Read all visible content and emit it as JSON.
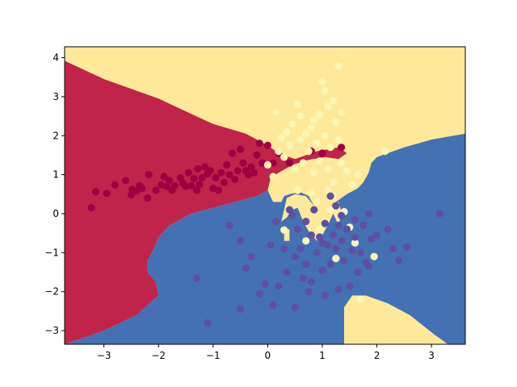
{
  "chart_data": {
    "type": "scatter",
    "title": "",
    "xlabel": "",
    "ylabel": "",
    "xlim": [
      -3.72,
      3.62
    ],
    "ylim": [
      -3.35,
      4.28
    ],
    "grid": false,
    "legend": "none",
    "x_ticks": [
      -3,
      -2,
      -1,
      0,
      1,
      2,
      3
    ],
    "y_ticks": [
      -3,
      -2,
      -1,
      0,
      1,
      2,
      3,
      4
    ],
    "x_tick_labels": [
      "−3",
      "−2",
      "−1",
      "0",
      "1",
      "2",
      "3"
    ],
    "y_tick_labels": [
      "−3",
      "−2",
      "−1",
      "0",
      "1",
      "2",
      "3",
      "4"
    ],
    "background": "decision regions of a 3-class classifier",
    "classes": [
      {
        "class": 0,
        "region_color": "#c1244a",
        "point_color": "#9e0142"
      },
      {
        "class": 1,
        "region_color": "#fee99a",
        "point_color": "#fef6b4"
      },
      {
        "class": 2,
        "region_color": "#4471b4",
        "point_color": "#5e4fa2"
      }
    ],
    "regions": {
      "class0": [
        [
          -3.72,
          3.92
        ],
        [
          -3.0,
          3.45
        ],
        [
          -2.0,
          2.95
        ],
        [
          -1.0,
          2.3
        ],
        [
          -0.4,
          2.05
        ],
        [
          0.0,
          1.75
        ],
        [
          0.2,
          1.55
        ],
        [
          0.5,
          1.4
        ],
        [
          0.9,
          1.6
        ],
        [
          1.3,
          1.7
        ],
        [
          1.45,
          1.55
        ],
        [
          1.3,
          1.4
        ],
        [
          1.05,
          1.45
        ],
        [
          0.75,
          1.38
        ],
        [
          0.45,
          1.25
        ],
        [
          0.2,
          1.05
        ],
        [
          0.05,
          0.9
        ],
        [
          0.0,
          0.6
        ],
        [
          -0.2,
          0.45
        ],
        [
          -0.6,
          0.3
        ],
        [
          -1.0,
          0.15
        ],
        [
          -1.4,
          0.0
        ],
        [
          -1.8,
          -0.3
        ],
        [
          -2.0,
          -0.6
        ],
        [
          -2.1,
          -0.95
        ],
        [
          -2.2,
          -1.2
        ],
        [
          -2.2,
          -1.5
        ],
        [
          -2.05,
          -1.75
        ],
        [
          -2.0,
          -2.1
        ],
        [
          -2.4,
          -2.6
        ],
        [
          -3.0,
          -3.0
        ],
        [
          -3.72,
          -3.35
        ]
      ],
      "class2": [
        [
          -3.72,
          -3.35
        ],
        [
          -3.0,
          -3.0
        ],
        [
          -2.4,
          -2.6
        ],
        [
          -2.0,
          -2.1
        ],
        [
          -2.05,
          -1.75
        ],
        [
          -2.2,
          -1.5
        ],
        [
          -2.2,
          -1.2
        ],
        [
          -2.1,
          -0.95
        ],
        [
          -2.0,
          -0.6
        ],
        [
          -1.8,
          -0.3
        ],
        [
          -1.4,
          0.0
        ],
        [
          -1.0,
          0.15
        ],
        [
          -0.6,
          0.3
        ],
        [
          -0.2,
          0.45
        ],
        [
          0.0,
          0.6
        ],
        [
          0.1,
          0.3
        ],
        [
          0.25,
          0.3
        ],
        [
          0.3,
          0.45
        ],
        [
          0.4,
          0.5
        ],
        [
          0.6,
          0.55
        ],
        [
          0.75,
          0.45
        ],
        [
          0.85,
          0.2
        ],
        [
          0.95,
          0.15
        ],
        [
          1.05,
          0.1
        ],
        [
          1.2,
          0.25
        ],
        [
          1.3,
          0.35
        ],
        [
          1.45,
          0.5
        ],
        [
          1.65,
          0.65
        ],
        [
          1.75,
          0.8
        ],
        [
          1.85,
          1.05
        ],
        [
          1.9,
          1.3
        ],
        [
          2.0,
          1.45
        ],
        [
          2.5,
          1.7
        ],
        [
          3.0,
          1.9
        ],
        [
          3.62,
          2.05
        ],
        [
          3.62,
          -3.35
        ],
        [
          3.3,
          -3.35
        ],
        [
          3.05,
          -3.1
        ],
        [
          2.6,
          -2.6
        ],
        [
          2.0,
          -2.3
        ],
        [
          1.65,
          -2.1
        ],
        [
          1.4,
          -2.4
        ],
        [
          1.4,
          -3.35
        ]
      ],
      "class1_islands": [
        [
          [
            1.4,
            -3.35
          ],
          [
            1.4,
            -2.4
          ],
          [
            1.55,
            -2.1
          ],
          [
            1.8,
            -2.1
          ],
          [
            2.2,
            -2.3
          ],
          [
            2.6,
            -2.6
          ],
          [
            3.05,
            -3.1
          ],
          [
            3.3,
            -3.35
          ]
        ],
        [
          [
            0.25,
            -0.2
          ],
          [
            0.35,
            -0.1
          ],
          [
            0.45,
            0.1
          ],
          [
            0.55,
            0.15
          ],
          [
            0.65,
            -0.2
          ],
          [
            0.75,
            -0.45
          ],
          [
            0.9,
            -0.7
          ],
          [
            1.0,
            -0.55
          ],
          [
            1.1,
            -0.3
          ],
          [
            1.2,
            0.0
          ],
          [
            1.3,
            -0.3
          ],
          [
            1.35,
            0.05
          ],
          [
            1.3,
            0.3
          ],
          [
            1.15,
            0.2
          ],
          [
            1.0,
            0.15
          ],
          [
            0.85,
            0.2
          ],
          [
            0.7,
            0.45
          ],
          [
            0.5,
            0.5
          ],
          [
            0.35,
            0.4
          ]
        ],
        [
          [
            0.3,
            -0.4
          ],
          [
            0.4,
            -0.4
          ],
          [
            0.4,
            -0.7
          ],
          [
            0.3,
            -0.7
          ]
        ]
      ]
    },
    "series": [
      {
        "class": 0,
        "points": [
          [
            -3.23,
            0.15
          ],
          [
            -3.15,
            0.56
          ],
          [
            -2.95,
            0.52
          ],
          [
            -2.8,
            0.74
          ],
          [
            -2.6,
            0.85
          ],
          [
            -2.5,
            0.48
          ],
          [
            -2.48,
            0.62
          ],
          [
            -2.4,
            0.58
          ],
          [
            -2.35,
            0.72
          ],
          [
            -2.3,
            0.65
          ],
          [
            -2.2,
            0.4
          ],
          [
            -2.18,
            1.0
          ],
          [
            -2.05,
            0.6
          ],
          [
            -1.95,
            0.74
          ],
          [
            -1.9,
            0.95
          ],
          [
            -1.85,
            0.7
          ],
          [
            -1.8,
            0.85
          ],
          [
            -1.75,
            0.6
          ],
          [
            -1.7,
            0.72
          ],
          [
            -1.6,
            0.92
          ],
          [
            -1.55,
            0.78
          ],
          [
            -1.5,
            0.7
          ],
          [
            -1.45,
            1.05
          ],
          [
            -1.4,
            0.72
          ],
          [
            -1.35,
            0.9
          ],
          [
            -1.3,
            0.6
          ],
          [
            -1.28,
            1.15
          ],
          [
            -1.25,
            0.75
          ],
          [
            -1.2,
            0.92
          ],
          [
            -1.15,
            1.2
          ],
          [
            -1.1,
            1.02
          ],
          [
            -1.05,
            1.1
          ],
          [
            -1.0,
            0.65
          ],
          [
            -0.95,
            0.92
          ],
          [
            -0.9,
            0.6
          ],
          [
            -0.85,
            1.05
          ],
          [
            -0.8,
            0.8
          ],
          [
            -0.75,
            1.25
          ],
          [
            -0.7,
            1.0
          ],
          [
            -0.65,
            1.55
          ],
          [
            -0.6,
            0.88
          ],
          [
            -0.55,
            1.1
          ],
          [
            -0.5,
            1.65
          ],
          [
            -0.45,
            1.3
          ],
          [
            -0.4,
            1.1
          ],
          [
            -0.35,
            1.0
          ],
          [
            -0.3,
            1.2
          ],
          [
            -0.25,
            1.05
          ],
          [
            -0.2,
            1.5
          ],
          [
            -0.15,
            1.8
          ],
          [
            -0.1,
            1.3
          ],
          [
            0.0,
            1.75
          ],
          [
            0.1,
            1.3
          ],
          [
            0.2,
            1.55
          ],
          [
            0.4,
            1.3
          ],
          [
            0.8,
            1.6
          ],
          [
            1.0,
            1.55
          ],
          [
            1.35,
            1.7
          ]
        ]
      },
      {
        "class": 1,
        "points": [
          [
            0.0,
            1.25
          ],
          [
            0.1,
            0.95
          ],
          [
            0.15,
            2.6
          ],
          [
            0.2,
            1.6
          ],
          [
            0.25,
            1.95
          ],
          [
            0.3,
            1.45
          ],
          [
            0.3,
            -0.42
          ],
          [
            0.35,
            2.1
          ],
          [
            0.4,
            1.75
          ],
          [
            0.45,
            2.3
          ],
          [
            0.5,
            1.15
          ],
          [
            0.55,
            2.8
          ],
          [
            0.6,
            1.9
          ],
          [
            0.6,
            2.5
          ],
          [
            0.65,
            1.3
          ],
          [
            0.7,
            2.05
          ],
          [
            0.7,
            -0.7
          ],
          [
            0.75,
            1.6
          ],
          [
            0.8,
            2.2
          ],
          [
            0.85,
            1.05
          ],
          [
            0.85,
            2.4
          ],
          [
            0.9,
            1.8
          ],
          [
            0.95,
            2.55
          ],
          [
            0.95,
            1.35
          ],
          [
            1.0,
            3.4
          ],
          [
            1.05,
            2.0
          ],
          [
            1.05,
            3.15
          ],
          [
            1.1,
            2.75
          ],
          [
            1.1,
            1.15
          ],
          [
            1.15,
            1.7
          ],
          [
            1.2,
            2.9
          ],
          [
            1.2,
            0.8
          ],
          [
            1.25,
            2.35
          ],
          [
            1.25,
            -1.15
          ],
          [
            1.3,
            1.9
          ],
          [
            1.3,
            3.78
          ],
          [
            1.35,
            2.6
          ],
          [
            1.35,
            1.3
          ],
          [
            1.4,
            0.05
          ],
          [
            1.45,
            1.1
          ],
          [
            1.5,
            -0.35
          ],
          [
            1.55,
            0.75
          ],
          [
            1.6,
            -0.75
          ],
          [
            1.65,
            1.0
          ],
          [
            1.7,
            -2.2
          ],
          [
            1.95,
            -1.1
          ],
          [
            2.15,
            1.6
          ],
          [
            1.1,
            0.6
          ],
          [
            0.55,
            0.6
          ],
          [
            0.9,
            0.3
          ],
          [
            1.15,
            0.1
          ],
          [
            0.95,
            -0.4
          ],
          [
            1.05,
            -0.2
          ],
          [
            0.8,
            0.55
          ],
          [
            1.2,
            0.45
          ]
        ]
      },
      {
        "class": 2,
        "points": [
          [
            -1.3,
            -1.65
          ],
          [
            -1.1,
            -2.8
          ],
          [
            -0.7,
            -0.3
          ],
          [
            -0.5,
            -0.7
          ],
          [
            -0.5,
            -2.45
          ],
          [
            -0.4,
            -1.4
          ],
          [
            -0.3,
            -1.1
          ],
          [
            -0.15,
            -2.05
          ],
          [
            -0.05,
            -1.8
          ],
          [
            0.05,
            -0.8
          ],
          [
            0.1,
            -2.35
          ],
          [
            0.15,
            -0.2
          ],
          [
            0.2,
            -1.85
          ],
          [
            0.3,
            -0.9
          ],
          [
            0.35,
            -1.5
          ],
          [
            0.4,
            0.1
          ],
          [
            0.45,
            -0.05
          ],
          [
            0.5,
            -1.1
          ],
          [
            0.5,
            -2.4
          ],
          [
            0.55,
            -0.4
          ],
          [
            0.6,
            -0.9
          ],
          [
            0.65,
            -1.65
          ],
          [
            0.7,
            -0.2
          ],
          [
            0.7,
            -1.3
          ],
          [
            0.75,
            -2.0
          ],
          [
            0.8,
            -0.55
          ],
          [
            0.8,
            -1.75
          ],
          [
            0.85,
            0.1
          ],
          [
            0.9,
            -1.0
          ],
          [
            0.95,
            -0.6
          ],
          [
            1.0,
            -0.75
          ],
          [
            1.0,
            -1.45
          ],
          [
            1.05,
            -0.25
          ],
          [
            1.05,
            -2.1
          ],
          [
            1.1,
            -0.8
          ],
          [
            1.15,
            -1.3
          ],
          [
            1.2,
            -0.55
          ],
          [
            1.25,
            -0.9
          ],
          [
            1.3,
            -0.3
          ],
          [
            1.3,
            -1.95
          ],
          [
            1.35,
            -0.7
          ],
          [
            1.4,
            -1.2
          ],
          [
            1.45,
            -0.4
          ],
          [
            1.5,
            -1.85
          ],
          [
            1.55,
            -0.95
          ],
          [
            1.6,
            -0.6
          ],
          [
            1.65,
            -1.5
          ],
          [
            1.7,
            -1.0
          ],
          [
            1.75,
            -0.3
          ],
          [
            1.8,
            -1.25
          ],
          [
            1.85,
            0.0
          ],
          [
            1.9,
            -0.65
          ],
          [
            2.0,
            -0.55
          ],
          [
            2.2,
            -0.4
          ],
          [
            2.3,
            -0.9
          ],
          [
            2.4,
            -1.2
          ],
          [
            2.55,
            -0.85
          ],
          [
            3.15,
            0.0
          ],
          [
            1.15,
            0.45
          ],
          [
            1.25,
            0.2
          ],
          [
            1.85,
            -1.35
          ],
          [
            1.6,
            -0.15
          ],
          [
            1.35,
            -0.05
          ]
        ]
      }
    ]
  }
}
